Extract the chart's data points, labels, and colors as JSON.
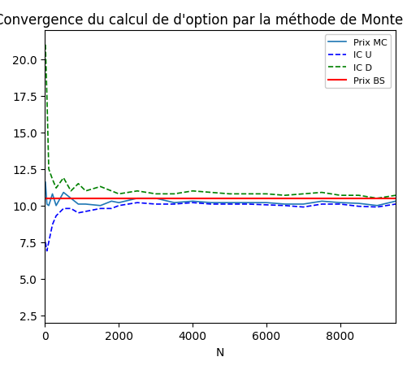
{
  "title": "Convergence du calcul de d'option par la méthode de Monte Carlo.",
  "xlabel": "N",
  "ylabel": "",
  "xlim": [
    0,
    9500
  ],
  "ylim": [
    2.0,
    22.0
  ],
  "yticks": [
    2.5,
    5.0,
    7.5,
    10.0,
    12.5,
    15.0,
    17.5,
    20.0
  ],
  "xticks": [
    0,
    2000,
    4000,
    6000,
    8000
  ],
  "prix_bs": 10.5,
  "prix_bs_color": "#ff0000",
  "prix_mc_color": "#1f77b4",
  "ic_u_color": "#0000ff",
  "ic_d_color": "#008000",
  "legend_labels": [
    "Prix MC",
    "IC U",
    "IC D",
    "Prix BS"
  ],
  "N_values": [
    10,
    50,
    100,
    200,
    300,
    500,
    700,
    900,
    1100,
    1500,
    1800,
    2000,
    2500,
    3000,
    3500,
    4000,
    4500,
    5000,
    5500,
    6000,
    6500,
    7000,
    7500,
    8000,
    8500,
    9000,
    9500
  ],
  "prix_mc": [
    11.6,
    10.1,
    10.0,
    10.8,
    10.0,
    10.9,
    10.5,
    10.1,
    10.1,
    10.0,
    10.3,
    10.2,
    10.5,
    10.5,
    10.2,
    10.3,
    10.2,
    10.2,
    10.2,
    10.2,
    10.1,
    10.1,
    10.3,
    10.2,
    10.15,
    10.0,
    10.3
  ],
  "ic_u": [
    7.5,
    6.9,
    7.5,
    8.7,
    9.3,
    9.8,
    9.8,
    9.5,
    9.6,
    9.8,
    9.8,
    10.0,
    10.2,
    10.1,
    10.1,
    10.2,
    10.1,
    10.1,
    10.1,
    10.05,
    10.0,
    9.9,
    10.1,
    10.1,
    9.95,
    9.9,
    10.1
  ],
  "ic_d": [
    21.0,
    17.5,
    12.5,
    11.8,
    11.2,
    11.9,
    11.0,
    11.5,
    11.0,
    11.3,
    11.0,
    10.8,
    11.0,
    10.8,
    10.8,
    11.0,
    10.9,
    10.8,
    10.8,
    10.8,
    10.7,
    10.8,
    10.9,
    10.7,
    10.7,
    10.5,
    10.7
  ]
}
